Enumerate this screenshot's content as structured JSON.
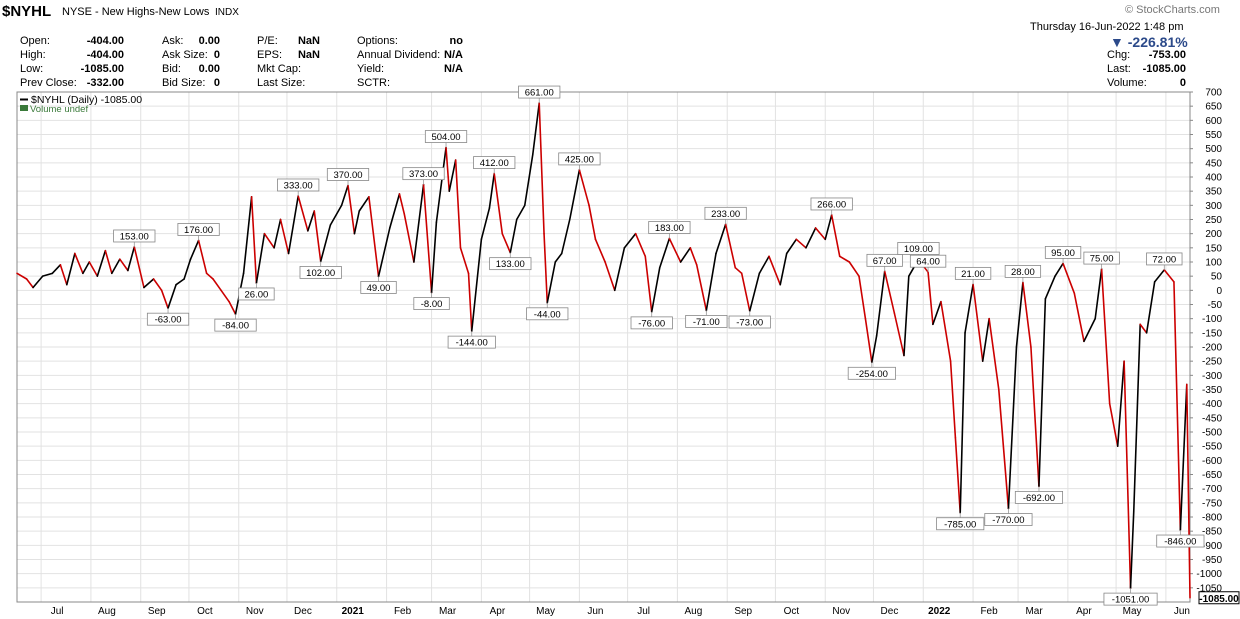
{
  "header": {
    "symbol": "$NYHL",
    "name": "NYSE - New Highs-New Lows",
    "exchange": "INDX",
    "credit": "© StockCharts.com",
    "datetime": "Thursday  16-Jun-2022  1:48 pm",
    "change_pct": "▼ -226.81%",
    "col1": [
      {
        "label": "Open:",
        "value": "-404.00"
      },
      {
        "label": "High:",
        "value": "-404.00"
      },
      {
        "label": "Low:",
        "value": "-1085.00"
      },
      {
        "label": "Prev Close:",
        "value": "-332.00"
      }
    ],
    "col2": [
      {
        "label": "Ask:",
        "value": "0.00"
      },
      {
        "label": "Ask Size:",
        "value": "0"
      },
      {
        "label": "Bid:",
        "value": "0.00"
      },
      {
        "label": "Bid Size:",
        "value": "0"
      }
    ],
    "col3": [
      {
        "label": "P/E:",
        "value": "NaN"
      },
      {
        "label": "EPS:",
        "value": "NaN"
      },
      {
        "label": "Mkt Cap:",
        "value": ""
      },
      {
        "label": "Last Size:",
        "value": ""
      }
    ],
    "col4": [
      {
        "label": "Options:",
        "value": "no"
      },
      {
        "label": "Annual Dividend:",
        "value": "N/A"
      },
      {
        "label": "Yield:",
        "value": "N/A"
      },
      {
        "label": "SCTR:",
        "value": ""
      }
    ],
    "col5": [
      {
        "label": "Chg:",
        "value": "-753.00"
      },
      {
        "label": "Last:",
        "value": "-1085.00"
      },
      {
        "label": "Volume:",
        "value": "0"
      }
    ]
  },
  "colors": {
    "up": "#000000",
    "down": "#cc0000",
    "grid": "#e2e2e2",
    "accent": "#2c4a8a"
  },
  "chart_data": {
    "type": "line",
    "legend": "$NYHL (Daily) -1085.00",
    "legend2": "Volume undef",
    "last_value": -1085,
    "last_label": "-1085.00",
    "ylim": [
      -1100,
      700
    ],
    "yticks": [
      700,
      650,
      600,
      550,
      500,
      450,
      400,
      350,
      300,
      250,
      200,
      150,
      100,
      50,
      0,
      -50,
      -100,
      -150,
      -200,
      -250,
      -300,
      -350,
      -400,
      -450,
      -500,
      -550,
      -600,
      -650,
      -700,
      -750,
      -800,
      -850,
      -900,
      -950,
      -1000,
      -1050
    ],
    "xlim": [
      "2020-06-16",
      "2022-06-16"
    ],
    "month_ticks": [
      {
        "date": "2020-07-01",
        "label": "Jul"
      },
      {
        "date": "2020-08-01",
        "label": "Aug"
      },
      {
        "date": "2020-09-01",
        "label": "Sep"
      },
      {
        "date": "2020-10-01",
        "label": "Oct"
      },
      {
        "date": "2020-11-01",
        "label": "Nov"
      },
      {
        "date": "2020-12-01",
        "label": "Dec"
      },
      {
        "date": "2021-01-01",
        "label": "2021",
        "bold": true
      },
      {
        "date": "2021-02-01",
        "label": "Feb"
      },
      {
        "date": "2021-03-01",
        "label": "Mar"
      },
      {
        "date": "2021-04-01",
        "label": "Apr"
      },
      {
        "date": "2021-05-01",
        "label": "May"
      },
      {
        "date": "2021-06-01",
        "label": "Jun"
      },
      {
        "date": "2021-07-01",
        "label": "Jul"
      },
      {
        "date": "2021-08-01",
        "label": "Aug"
      },
      {
        "date": "2021-09-01",
        "label": "Sep"
      },
      {
        "date": "2021-10-01",
        "label": "Oct"
      },
      {
        "date": "2021-11-01",
        "label": "Nov"
      },
      {
        "date": "2021-12-01",
        "label": "Dec"
      },
      {
        "date": "2022-01-01",
        "label": "2022",
        "bold": true
      },
      {
        "date": "2022-02-01",
        "label": "Feb"
      },
      {
        "date": "2022-03-01",
        "label": "Mar"
      },
      {
        "date": "2022-04-01",
        "label": "Apr"
      },
      {
        "date": "2022-05-01",
        "label": "May"
      },
      {
        "date": "2022-06-01",
        "label": "Jun"
      }
    ],
    "series": [
      {
        "date": "2020-06-16",
        "value": 60
      },
      {
        "date": "2020-06-22",
        "value": 40
      },
      {
        "date": "2020-06-26",
        "value": 10
      },
      {
        "date": "2020-07-02",
        "value": 50
      },
      {
        "date": "2020-07-08",
        "value": 60
      },
      {
        "date": "2020-07-13",
        "value": 90
      },
      {
        "date": "2020-07-17",
        "value": 20
      },
      {
        "date": "2020-07-22",
        "value": 130
      },
      {
        "date": "2020-07-27",
        "value": 60
      },
      {
        "date": "2020-07-31",
        "value": 100
      },
      {
        "date": "2020-08-05",
        "value": 50
      },
      {
        "date": "2020-08-10",
        "value": 140
      },
      {
        "date": "2020-08-14",
        "value": 60
      },
      {
        "date": "2020-08-19",
        "value": 110
      },
      {
        "date": "2020-08-24",
        "value": 70
      },
      {
        "date": "2020-08-28",
        "value": 153
      },
      {
        "date": "2020-09-03",
        "value": 10
      },
      {
        "date": "2020-09-09",
        "value": 40
      },
      {
        "date": "2020-09-14",
        "value": 0
      },
      {
        "date": "2020-09-18",
        "value": -63
      },
      {
        "date": "2020-09-23",
        "value": 20
      },
      {
        "date": "2020-09-28",
        "value": 40
      },
      {
        "date": "2020-10-02",
        "value": 110
      },
      {
        "date": "2020-10-07",
        "value": 176
      },
      {
        "date": "2020-10-12",
        "value": 60
      },
      {
        "date": "2020-10-16",
        "value": 40
      },
      {
        "date": "2020-10-21",
        "value": 0
      },
      {
        "date": "2020-10-26",
        "value": -40
      },
      {
        "date": "2020-10-30",
        "value": -84
      },
      {
        "date": "2020-11-04",
        "value": 60
      },
      {
        "date": "2020-11-09",
        "value": 330
      },
      {
        "date": "2020-11-12",
        "value": 26
      },
      {
        "date": "2020-11-17",
        "value": 200
      },
      {
        "date": "2020-11-23",
        "value": 150
      },
      {
        "date": "2020-11-27",
        "value": 250
      },
      {
        "date": "2020-12-02",
        "value": 130
      },
      {
        "date": "2020-12-08",
        "value": 333
      },
      {
        "date": "2020-12-14",
        "value": 210
      },
      {
        "date": "2020-12-18",
        "value": 280
      },
      {
        "date": "2020-12-22",
        "value": 102
      },
      {
        "date": "2020-12-28",
        "value": 230
      },
      {
        "date": "2021-01-04",
        "value": 300
      },
      {
        "date": "2021-01-08",
        "value": 370
      },
      {
        "date": "2021-01-12",
        "value": 200
      },
      {
        "date": "2021-01-15",
        "value": 280
      },
      {
        "date": "2021-01-21",
        "value": 330
      },
      {
        "date": "2021-01-27",
        "value": 49
      },
      {
        "date": "2021-02-03",
        "value": 220
      },
      {
        "date": "2021-02-09",
        "value": 340
      },
      {
        "date": "2021-02-12",
        "value": 270
      },
      {
        "date": "2021-02-18",
        "value": 100
      },
      {
        "date": "2021-02-24",
        "value": 373
      },
      {
        "date": "2021-03-01",
        "value": -8
      },
      {
        "date": "2021-03-04",
        "value": 240
      },
      {
        "date": "2021-03-10",
        "value": 504
      },
      {
        "date": "2021-03-12",
        "value": 350
      },
      {
        "date": "2021-03-16",
        "value": 460
      },
      {
        "date": "2021-03-19",
        "value": 150
      },
      {
        "date": "2021-03-24",
        "value": 60
      },
      {
        "date": "2021-03-26",
        "value": -144
      },
      {
        "date": "2021-04-01",
        "value": 180
      },
      {
        "date": "2021-04-06",
        "value": 290
      },
      {
        "date": "2021-04-09",
        "value": 412
      },
      {
        "date": "2021-04-14",
        "value": 200
      },
      {
        "date": "2021-04-19",
        "value": 133
      },
      {
        "date": "2021-04-23",
        "value": 250
      },
      {
        "date": "2021-04-28",
        "value": 300
      },
      {
        "date": "2021-05-03",
        "value": 480
      },
      {
        "date": "2021-05-07",
        "value": 661
      },
      {
        "date": "2021-05-10",
        "value": 200
      },
      {
        "date": "2021-05-12",
        "value": -44
      },
      {
        "date": "2021-05-17",
        "value": 100
      },
      {
        "date": "2021-05-21",
        "value": 130
      },
      {
        "date": "2021-05-26",
        "value": 250
      },
      {
        "date": "2021-06-01",
        "value": 425
      },
      {
        "date": "2021-06-07",
        "value": 300
      },
      {
        "date": "2021-06-11",
        "value": 180
      },
      {
        "date": "2021-06-17",
        "value": 100
      },
      {
        "date": "2021-06-23",
        "value": 0
      },
      {
        "date": "2021-06-29",
        "value": 150
      },
      {
        "date": "2021-07-06",
        "value": 200
      },
      {
        "date": "2021-07-12",
        "value": 120
      },
      {
        "date": "2021-07-16",
        "value": -76
      },
      {
        "date": "2021-07-21",
        "value": 80
      },
      {
        "date": "2021-07-27",
        "value": 183
      },
      {
        "date": "2021-08-03",
        "value": 100
      },
      {
        "date": "2021-08-09",
        "value": 150
      },
      {
        "date": "2021-08-13",
        "value": 90
      },
      {
        "date": "2021-08-19",
        "value": -71
      },
      {
        "date": "2021-08-25",
        "value": 130
      },
      {
        "date": "2021-08-31",
        "value": 233
      },
      {
        "date": "2021-09-06",
        "value": 80
      },
      {
        "date": "2021-09-10",
        "value": 60
      },
      {
        "date": "2021-09-15",
        "value": -73
      },
      {
        "date": "2021-09-21",
        "value": 60
      },
      {
        "date": "2021-09-27",
        "value": 120
      },
      {
        "date": "2021-10-04",
        "value": 20
      },
      {
        "date": "2021-10-08",
        "value": 130
      },
      {
        "date": "2021-10-14",
        "value": 180
      },
      {
        "date": "2021-10-20",
        "value": 150
      },
      {
        "date": "2021-10-26",
        "value": 220
      },
      {
        "date": "2021-11-01",
        "value": 180
      },
      {
        "date": "2021-11-05",
        "value": 266
      },
      {
        "date": "2021-11-10",
        "value": 120
      },
      {
        "date": "2021-11-16",
        "value": 100
      },
      {
        "date": "2021-11-22",
        "value": 50
      },
      {
        "date": "2021-11-26",
        "value": -100
      },
      {
        "date": "2021-11-30",
        "value": -254
      },
      {
        "date": "2021-12-03",
        "value": -160
      },
      {
        "date": "2021-12-08",
        "value": 67
      },
      {
        "date": "2021-12-14",
        "value": -80
      },
      {
        "date": "2021-12-20",
        "value": -230
      },
      {
        "date": "2021-12-23",
        "value": 50
      },
      {
        "date": "2021-12-29",
        "value": 109
      },
      {
        "date": "2022-01-04",
        "value": 64
      },
      {
        "date": "2022-01-07",
        "value": -120
      },
      {
        "date": "2022-01-12",
        "value": -40
      },
      {
        "date": "2022-01-18",
        "value": -250
      },
      {
        "date": "2022-01-21",
        "value": -520
      },
      {
        "date": "2022-01-24",
        "value": -785
      },
      {
        "date": "2022-01-27",
        "value": -150
      },
      {
        "date": "2022-02-01",
        "value": 21
      },
      {
        "date": "2022-02-07",
        "value": -250
      },
      {
        "date": "2022-02-11",
        "value": -100
      },
      {
        "date": "2022-02-17",
        "value": -350
      },
      {
        "date": "2022-02-23",
        "value": -770
      },
      {
        "date": "2022-02-28",
        "value": -200
      },
      {
        "date": "2022-03-04",
        "value": 28
      },
      {
        "date": "2022-03-09",
        "value": -200
      },
      {
        "date": "2022-03-14",
        "value": -692
      },
      {
        "date": "2022-03-18",
        "value": -30
      },
      {
        "date": "2022-03-24",
        "value": 50
      },
      {
        "date": "2022-03-29",
        "value": 95
      },
      {
        "date": "2022-04-05",
        "value": -10
      },
      {
        "date": "2022-04-11",
        "value": -180
      },
      {
        "date": "2022-04-18",
        "value": -100
      },
      {
        "date": "2022-04-22",
        "value": 75
      },
      {
        "date": "2022-04-27",
        "value": -400
      },
      {
        "date": "2022-05-02",
        "value": -550
      },
      {
        "date": "2022-05-06",
        "value": -250
      },
      {
        "date": "2022-05-10",
        "value": -1051
      },
      {
        "date": "2022-05-12",
        "value": -780
      },
      {
        "date": "2022-05-16",
        "value": -120
      },
      {
        "date": "2022-05-20",
        "value": -150
      },
      {
        "date": "2022-05-25",
        "value": 30
      },
      {
        "date": "2022-05-31",
        "value": 72
      },
      {
        "date": "2022-06-06",
        "value": 30
      },
      {
        "date": "2022-06-10",
        "value": -846
      },
      {
        "date": "2022-06-14",
        "value": -332
      },
      {
        "date": "2022-06-16",
        "value": -1085
      }
    ],
    "annotations": [
      {
        "date": "2020-08-28",
        "value": 153,
        "label": "153.00",
        "pos": "above"
      },
      {
        "date": "2020-09-18",
        "value": -63,
        "label": "-63.00",
        "pos": "below"
      },
      {
        "date": "2020-10-07",
        "value": 176,
        "label": "176.00",
        "pos": "above"
      },
      {
        "date": "2020-10-30",
        "value": -84,
        "label": "-84.00",
        "pos": "below"
      },
      {
        "date": "2020-11-12",
        "value": 26,
        "label": "26.00",
        "pos": "below"
      },
      {
        "date": "2020-12-08",
        "value": 333,
        "label": "333.00",
        "pos": "above"
      },
      {
        "date": "2020-12-22",
        "value": 102,
        "label": "102.00",
        "pos": "below"
      },
      {
        "date": "2021-01-08",
        "value": 370,
        "label": "370.00",
        "pos": "above"
      },
      {
        "date": "2021-01-27",
        "value": 49,
        "label": "49.00",
        "pos": "below"
      },
      {
        "date": "2021-02-24",
        "value": 373,
        "label": "373.00",
        "pos": "above"
      },
      {
        "date": "2021-03-01",
        "value": -8,
        "label": "-8.00",
        "pos": "below"
      },
      {
        "date": "2021-03-10",
        "value": 504,
        "label": "504.00",
        "pos": "above"
      },
      {
        "date": "2021-03-26",
        "value": -144,
        "label": "-144.00",
        "pos": "below"
      },
      {
        "date": "2021-04-09",
        "value": 412,
        "label": "412.00",
        "pos": "above"
      },
      {
        "date": "2021-04-19",
        "value": 133,
        "label": "133.00",
        "pos": "below"
      },
      {
        "date": "2021-05-07",
        "value": 661,
        "label": "661.00",
        "pos": "above"
      },
      {
        "date": "2021-05-12",
        "value": -44,
        "label": "-44.00",
        "pos": "below"
      },
      {
        "date": "2021-06-01",
        "value": 425,
        "label": "425.00",
        "pos": "above"
      },
      {
        "date": "2021-07-16",
        "value": -76,
        "label": "-76.00",
        "pos": "below"
      },
      {
        "date": "2021-07-27",
        "value": 183,
        "label": "183.00",
        "pos": "above"
      },
      {
        "date": "2021-08-19",
        "value": -71,
        "label": "-71.00",
        "pos": "below"
      },
      {
        "date": "2021-08-31",
        "value": 233,
        "label": "233.00",
        "pos": "above"
      },
      {
        "date": "2021-09-15",
        "value": -73,
        "label": "-73.00",
        "pos": "below"
      },
      {
        "date": "2021-11-05",
        "value": 266,
        "label": "266.00",
        "pos": "above"
      },
      {
        "date": "2021-11-30",
        "value": -254,
        "label": "-254.00",
        "pos": "below"
      },
      {
        "date": "2021-12-08",
        "value": 67,
        "label": "67.00",
        "pos": "above"
      },
      {
        "date": "2021-12-29",
        "value": 109,
        "label": "109.00",
        "pos": "above"
      },
      {
        "date": "2022-01-04",
        "value": 64,
        "label": "64.00",
        "pos": "above"
      },
      {
        "date": "2022-01-24",
        "value": -785,
        "label": "-785.00",
        "pos": "below"
      },
      {
        "date": "2022-02-01",
        "value": 21,
        "label": "21.00",
        "pos": "above"
      },
      {
        "date": "2022-02-23",
        "value": -770,
        "label": "-770.00",
        "pos": "below"
      },
      {
        "date": "2022-03-04",
        "value": 28,
        "label": "28.00",
        "pos": "above"
      },
      {
        "date": "2022-03-14",
        "value": -692,
        "label": "-692.00",
        "pos": "below"
      },
      {
        "date": "2022-03-29",
        "value": 95,
        "label": "95.00",
        "pos": "above"
      },
      {
        "date": "2022-04-22",
        "value": 75,
        "label": "75.00",
        "pos": "above"
      },
      {
        "date": "2022-05-10",
        "value": -1051,
        "label": "-1051.00",
        "pos": "below"
      },
      {
        "date": "2022-05-31",
        "value": 72,
        "label": "72.00",
        "pos": "above"
      },
      {
        "date": "2022-06-10",
        "value": -846,
        "label": "-846.00",
        "pos": "below"
      }
    ]
  }
}
